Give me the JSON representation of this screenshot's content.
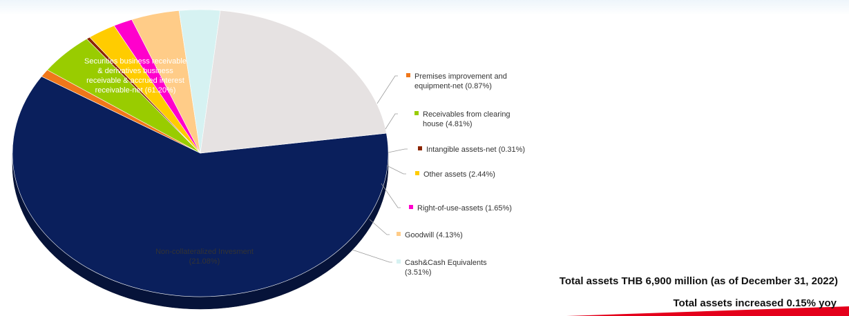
{
  "chart_data": {
    "type": "pie",
    "slices": [
      {
        "label": "Securities business receivable & derivatives business receivable & accrued interest receivable-net (61.20%)",
        "value": 61.2,
        "color": "#0a1f5c"
      },
      {
        "label": "Premises improvement and equipment-net (0.87%)",
        "value": 0.87,
        "color": "#f0771a"
      },
      {
        "label": "Receivables from clearing house (4.81%)",
        "value": 4.81,
        "color": "#99cc00"
      },
      {
        "label": "Intangible assets-net (0.31%)",
        "value": 0.31,
        "color": "#8b2500"
      },
      {
        "label": "Other assets (2.44%)",
        "value": 2.44,
        "color": "#ffcc00"
      },
      {
        "label": "Right-of-use-assets (1.65%)",
        "value": 1.65,
        "color": "#ff00cc"
      },
      {
        "label": "Goodwill (4.13%)",
        "value": 4.13,
        "color": "#ffcc88"
      },
      {
        "label": "Cash&Cash Equivalents (3.51%)",
        "value": 3.51,
        "color": "#d6f2f2"
      },
      {
        "label": "Non-collateralized Invesment (21.08%)",
        "value": 21.08,
        "color": "#e6e2e2"
      }
    ],
    "inner_label_lines": [
      [
        "Securities business receivable",
        "& derivatives business",
        "receivable & accrued interest",
        "receivable-net (61.20%)"
      ],
      null,
      null,
      null,
      null,
      null,
      null,
      null,
      [
        "Non-collateralized Invesment",
        "(21.08%)"
      ]
    ],
    "outer_label_lines": [
      null,
      [
        "Premises improvement and",
        "equipment-net (0.87%)"
      ],
      [
        "Receivables from clearing",
        "house (4.81%)"
      ],
      [
        "Intangible assets-net (0.31%)"
      ],
      [
        "Other assets (2.44%)"
      ],
      [
        "Right-of-use-assets (1.65%)"
      ],
      [
        "Goodwill (4.13%)"
      ],
      [
        "Cash&Cash Equivalents",
        "(3.51%)"
      ],
      null
    ]
  },
  "summary": {
    "total_assets": "Total assets THB 6,900 million (as of December 31, 2022)",
    "total_change": "Total assets increased 0.15% yoy"
  }
}
